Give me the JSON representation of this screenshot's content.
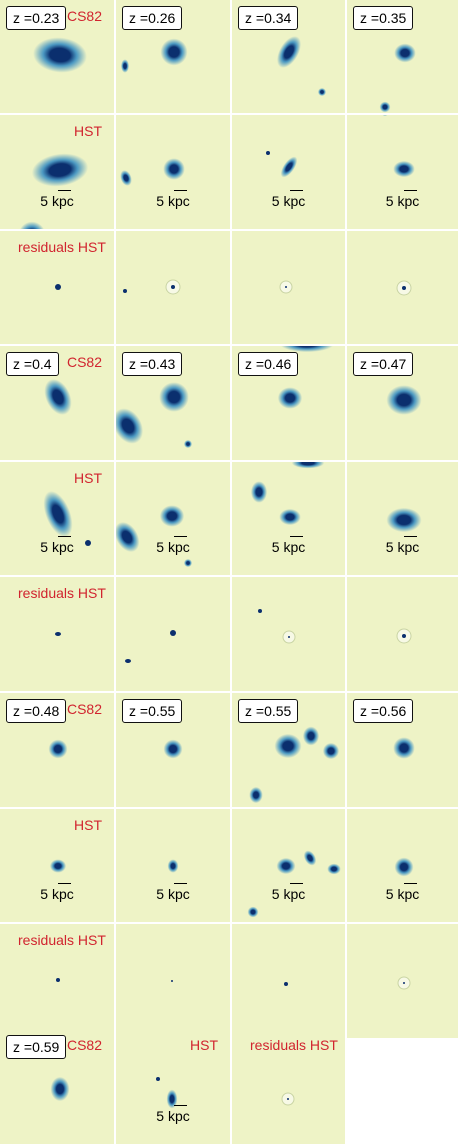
{
  "labels": {
    "cs82": "CS82",
    "hst": "HST",
    "residuals": "residuals HST",
    "scale": "5 kpc"
  },
  "colors": {
    "background": "#eef3c6",
    "halo": "#3a8fc2",
    "core": "#0b2f6e",
    "label_red": "#d1242f"
  },
  "groups": [
    {
      "redshifts": [
        "z =0.23",
        "z =0.26",
        "z =0.34",
        "z =0.35"
      ]
    },
    {
      "redshifts": [
        "z =0.4",
        "z =0.43",
        "z =0.46",
        "z =0.47"
      ]
    },
    {
      "redshifts": [
        "z =0.48",
        "z =0.55",
        "z =0.55",
        "z =0.56"
      ]
    }
  ],
  "last_row": {
    "redshift": "z =0.59"
  }
}
